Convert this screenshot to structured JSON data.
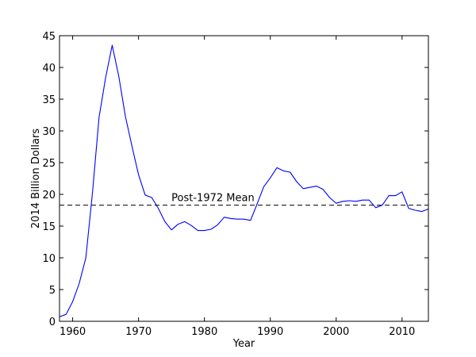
{
  "chart_data": {
    "type": "line",
    "title": "",
    "xlabel": "Year",
    "ylabel": "2014 Billion Dollars",
    "xlim": [
      1958,
      2014
    ],
    "ylim": [
      0,
      45
    ],
    "xticks": [
      1960,
      1970,
      1980,
      1990,
      2000,
      2010
    ],
    "yticks": [
      0,
      5,
      10,
      15,
      20,
      25,
      30,
      35,
      40,
      45
    ],
    "grid": false,
    "series": [
      {
        "color": "#0000ff",
        "x": [
          1958,
          1959,
          1960,
          1961,
          1962,
          1963,
          1964,
          1965,
          1966,
          1967,
          1968,
          1969,
          1970,
          1971,
          1972,
          1973,
          1974,
          1975,
          1976,
          1977,
          1978,
          1979,
          1980,
          1981,
          1982,
          1983,
          1984,
          1985,
          1986,
          1987,
          1988,
          1989,
          1990,
          1991,
          1992,
          1993,
          1994,
          1995,
          1996,
          1997,
          1998,
          1999,
          2000,
          2001,
          2002,
          2003,
          2004,
          2005,
          2006,
          2007,
          2008,
          2009,
          2010,
          2011,
          2012,
          2013,
          2014
        ],
        "y": [
          0.7,
          1.1,
          3.1,
          6.0,
          10.0,
          20.2,
          32.1,
          38.4,
          43.5,
          38.6,
          32.3,
          27.6,
          23.1,
          19.9,
          19.5,
          17.8,
          15.7,
          14.4,
          15.3,
          15.7,
          15.1,
          14.3,
          14.3,
          14.5,
          15.2,
          16.4,
          16.2,
          16.1,
          16.1,
          15.9,
          18.5,
          21.2,
          22.6,
          24.2,
          23.7,
          23.5,
          22.0,
          20.9,
          21.1,
          21.3,
          20.8,
          19.5,
          18.6,
          18.9,
          19.0,
          18.9,
          19.1,
          19.1,
          17.9,
          18.3,
          19.8,
          19.8,
          20.4,
          17.8,
          17.5,
          17.3,
          17.7
        ]
      }
    ],
    "reference_lines": [
      {
        "y": 18.3,
        "style": "dashed",
        "color": "#000000",
        "label": "Post-1972 Mean",
        "label_x": 1975
      }
    ]
  }
}
